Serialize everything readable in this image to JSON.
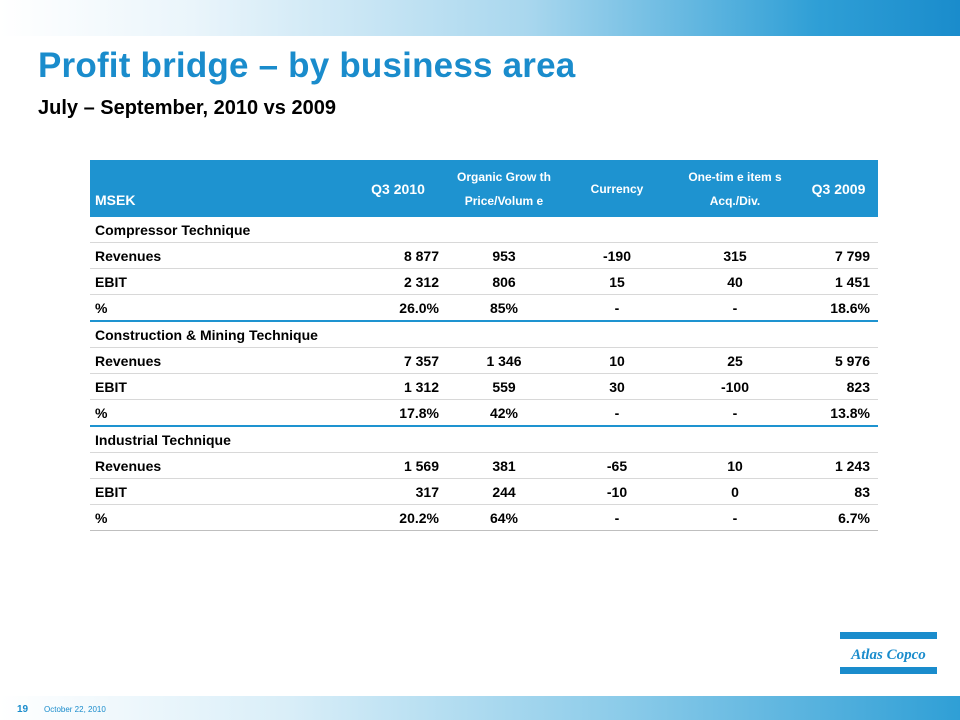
{
  "slide": {
    "title": "Profit bridge – by business area",
    "subtitle": "July – September, 2010 vs 2009",
    "page_number": "19",
    "date": "October 22, 2010",
    "accent_color": "#1a8ccc",
    "logo_text": "Atlas Copco"
  },
  "table": {
    "headers": {
      "msek": "MSEK",
      "q3_2010": "Q3 2010",
      "organic_line1": "Organic Grow th",
      "organic_line2": "Price/Volum e",
      "currency": "Currency",
      "onetime_line1": "One-tim e item s",
      "onetime_line2": "Acq./Div.",
      "q3_2009": "Q3 2009"
    },
    "sections": [
      {
        "name": "Compressor Technique",
        "rows": [
          {
            "label": "Revenues",
            "q3_2010": "8 877",
            "organic": "953",
            "currency": "-190",
            "onetime": "315",
            "q3_2009": "7 799"
          },
          {
            "label": "EBIT",
            "q3_2010": "2 312",
            "organic": "806",
            "currency": "15",
            "onetime": "40",
            "q3_2009": "1 451"
          },
          {
            "label": "%",
            "q3_2010": "26.0%",
            "organic": "85%",
            "currency": "-",
            "onetime": "-",
            "q3_2009": "18.6%"
          }
        ]
      },
      {
        "name": "Construction & Mining Technique",
        "rows": [
          {
            "label": "Revenues",
            "q3_2010": "7 357",
            "organic": "1 346",
            "currency": "10",
            "onetime": "25",
            "q3_2009": "5 976"
          },
          {
            "label": "EBIT",
            "q3_2010": "1 312",
            "organic": "559",
            "currency": "30",
            "onetime": "-100",
            "q3_2009": "823"
          },
          {
            "label": "%",
            "q3_2010": "17.8%",
            "organic": "42%",
            "currency": "-",
            "onetime": "-",
            "q3_2009": "13.8%"
          }
        ]
      },
      {
        "name": "Industrial Technique",
        "rows": [
          {
            "label": "Revenues",
            "q3_2010": "1 569",
            "organic": "381",
            "currency": "-65",
            "onetime": "10",
            "q3_2009": "1 243"
          },
          {
            "label": "EBIT",
            "q3_2010": "317",
            "organic": "244",
            "currency": "-10",
            "onetime": "0",
            "q3_2009": "83"
          },
          {
            "label": "%",
            "q3_2010": "20.2%",
            "organic": "64%",
            "currency": "-",
            "onetime": "-",
            "q3_2009": "6.7%"
          }
        ]
      }
    ]
  }
}
